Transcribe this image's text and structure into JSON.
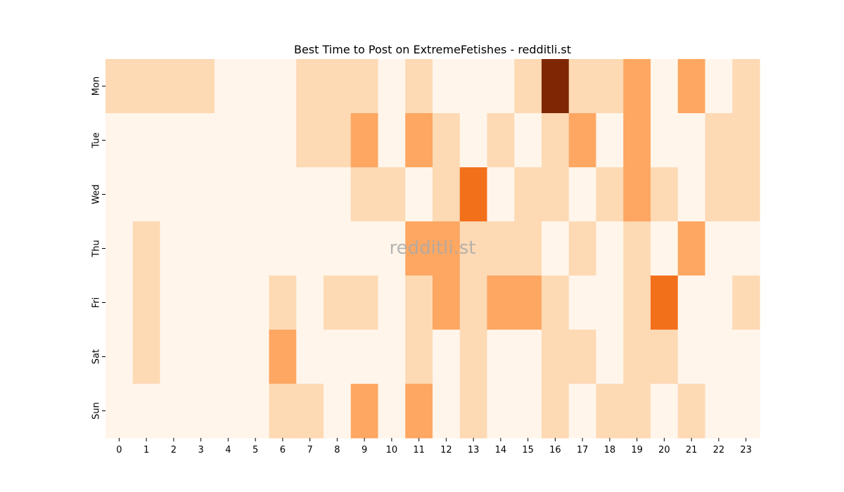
{
  "chart_data": {
    "type": "heatmap",
    "title": "Best Time to Post on ExtremeFetishes - redditli.st",
    "watermark": "redditli.st",
    "x_categories": [
      "0",
      "1",
      "2",
      "3",
      "4",
      "5",
      "6",
      "7",
      "8",
      "9",
      "10",
      "11",
      "12",
      "13",
      "14",
      "15",
      "16",
      "17",
      "18",
      "19",
      "20",
      "21",
      "22",
      "23"
    ],
    "y_categories": [
      "Mon",
      "Tue",
      "Wed",
      "Thu",
      "Fri",
      "Sat",
      "Sun"
    ],
    "colormap": "Oranges",
    "colorbar": false,
    "levels": {
      "0": "#fff5eb",
      "1": "#fdd9b4",
      "2": "#fda762",
      "3": "#f3701b",
      "4": "#7f2704"
    },
    "values": [
      [
        1,
        1,
        1,
        1,
        0,
        0,
        0,
        1,
        1,
        1,
        0,
        1,
        0,
        0,
        0,
        1,
        4,
        1,
        1,
        2,
        0,
        2,
        0,
        1
      ],
      [
        0,
        0,
        0,
        0,
        0,
        0,
        0,
        1,
        1,
        2,
        0,
        2,
        1,
        0,
        1,
        0,
        1,
        2,
        0,
        2,
        0,
        0,
        1,
        1
      ],
      [
        0,
        0,
        0,
        0,
        0,
        0,
        0,
        0,
        0,
        1,
        1,
        0,
        1,
        3,
        0,
        1,
        1,
        0,
        1,
        2,
        1,
        0,
        1,
        1
      ],
      [
        0,
        1,
        0,
        0,
        0,
        0,
        0,
        0,
        0,
        0,
        0,
        2,
        2,
        1,
        1,
        1,
        0,
        1,
        0,
        1,
        0,
        2,
        0,
        0
      ],
      [
        0,
        1,
        0,
        0,
        0,
        0,
        1,
        0,
        1,
        1,
        0,
        1,
        2,
        1,
        2,
        2,
        1,
        0,
        0,
        1,
        3,
        0,
        0,
        1
      ],
      [
        0,
        1,
        0,
        0,
        0,
        0,
        2,
        0,
        0,
        0,
        0,
        1,
        0,
        1,
        0,
        0,
        1,
        1,
        0,
        1,
        1,
        0,
        0,
        0
      ],
      [
        0,
        0,
        0,
        0,
        0,
        0,
        1,
        1,
        0,
        2,
        0,
        2,
        0,
        1,
        0,
        0,
        1,
        0,
        1,
        1,
        0,
        1,
        0,
        0
      ]
    ]
  }
}
